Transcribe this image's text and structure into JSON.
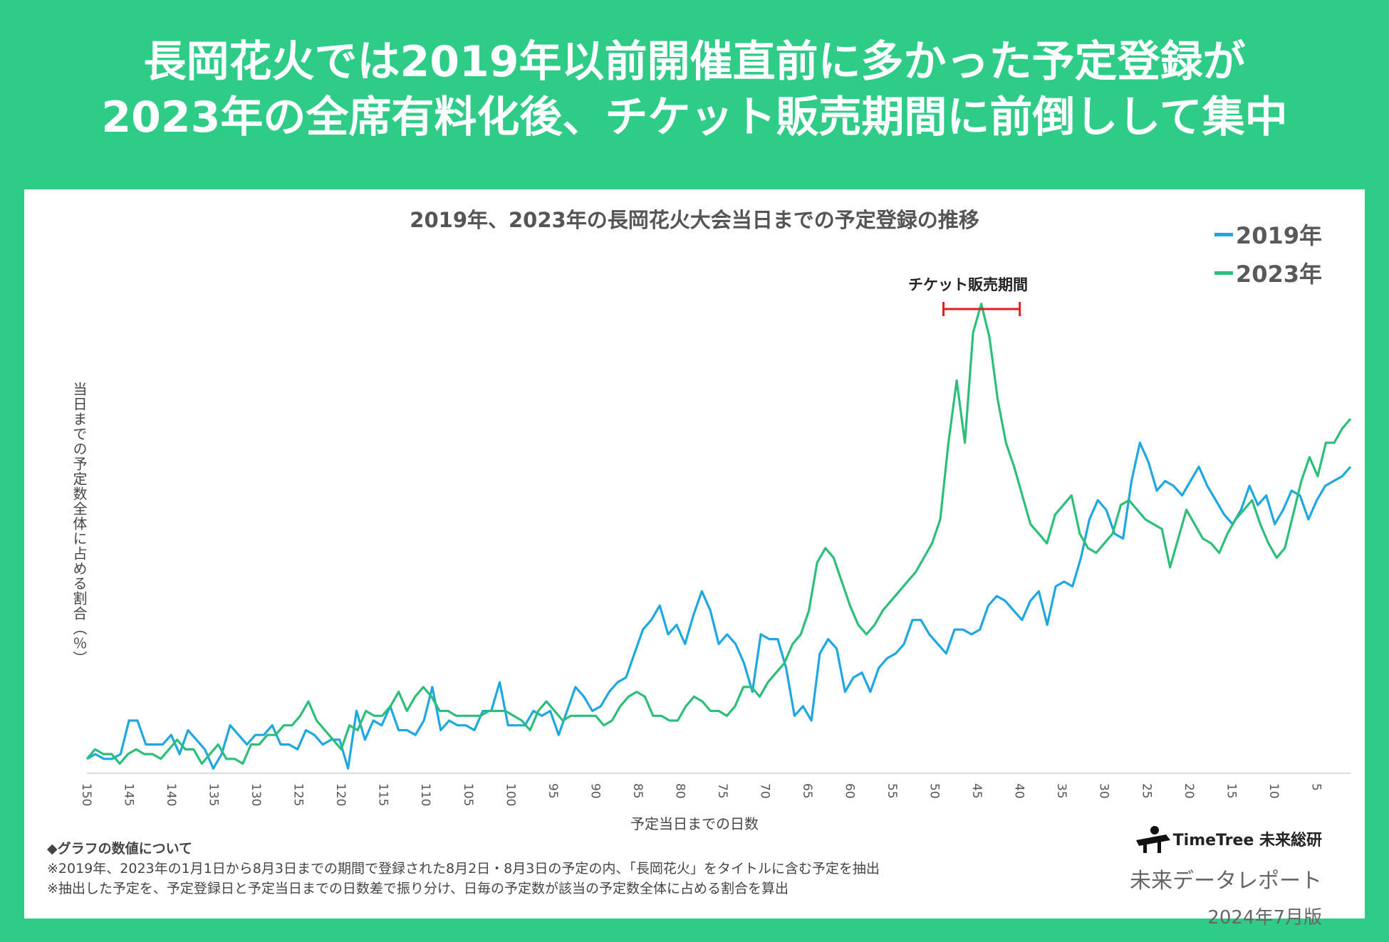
{
  "headline": {
    "line1": "長岡花火では2019年以前開催直前に多かった予定登録が",
    "line2": "2023年の全席有料化後、チケット販売期間に前倒しして集中"
  },
  "chart_data": {
    "type": "line",
    "title": "2019年、2023年の長岡花火大会当日までの予定登録の推移",
    "xlabel": "予定当日までの日数",
    "ylabel": "当日までの予定数全体に占める割合（％）",
    "x_reversed": true,
    "xlim": [
      150,
      1
    ],
    "ylim": [
      0,
      1.1
    ],
    "x_ticks": [
      "150",
      "145",
      "140",
      "135",
      "130",
      "125",
      "120",
      "115",
      "110",
      "105",
      "100",
      "95",
      "90",
      "85",
      "80",
      "75",
      "70",
      "65",
      "60",
      "55",
      "50",
      "45",
      "40",
      "35",
      "30",
      "25",
      "20",
      "15",
      "10",
      "5"
    ],
    "annotation": {
      "label": "チケット販売期間",
      "from_day": 49,
      "to_day": 40
    },
    "series": [
      {
        "name": "2019年",
        "color": "#1ea7e1",
        "values": [
          0.03,
          0.04,
          0.03,
          0.03,
          0.04,
          0.11,
          0.11,
          0.06,
          0.06,
          0.06,
          0.08,
          0.04,
          0.09,
          0.07,
          0.05,
          0.01,
          0.04,
          0.1,
          0.08,
          0.06,
          0.08,
          0.08,
          0.1,
          0.06,
          0.06,
          0.05,
          0.09,
          0.08,
          0.06,
          0.07,
          0.07,
          0.01,
          0.13,
          0.07,
          0.11,
          0.1,
          0.14,
          0.09,
          0.09,
          0.08,
          0.11,
          0.18,
          0.09,
          0.11,
          0.1,
          0.1,
          0.09,
          0.13,
          0.13,
          0.19,
          0.1,
          0.1,
          0.1,
          0.13,
          0.12,
          0.13,
          0.08,
          0.13,
          0.18,
          0.16,
          0.13,
          0.14,
          0.17,
          0.19,
          0.2,
          0.25,
          0.3,
          0.32,
          0.35,
          0.29,
          0.31,
          0.27,
          0.33,
          0.38,
          0.34,
          0.27,
          0.29,
          0.27,
          0.23,
          0.17,
          0.29,
          0.28,
          0.28,
          0.22,
          0.12,
          0.14,
          0.11,
          0.25,
          0.28,
          0.26,
          0.17,
          0.2,
          0.21,
          0.17,
          0.22,
          0.24,
          0.25,
          0.27,
          0.32,
          0.32,
          0.29,
          0.27,
          0.25,
          0.3,
          0.3,
          0.29,
          0.3,
          0.35,
          0.37,
          0.36,
          0.34,
          0.32,
          0.36,
          0.38,
          0.31,
          0.39,
          0.4,
          0.39,
          0.45,
          0.53,
          0.57,
          0.55,
          0.5,
          0.49,
          0.61,
          0.69,
          0.65,
          0.59,
          0.61,
          0.6,
          0.58,
          0.61,
          0.64,
          0.6,
          0.57,
          0.54,
          0.52,
          0.55,
          0.6,
          0.56,
          0.58,
          0.52,
          0.55,
          0.59,
          0.58,
          0.53,
          0.57,
          0.6,
          0.61,
          0.62,
          0.64
        ],
        "note": "values (%) listed from day 150 to day 1"
      },
      {
        "name": "2023年",
        "color": "#2dbf7a",
        "values": [
          0.03,
          0.05,
          0.04,
          0.04,
          0.02,
          0.04,
          0.05,
          0.04,
          0.04,
          0.03,
          0.05,
          0.07,
          0.05,
          0.05,
          0.02,
          0.04,
          0.06,
          0.03,
          0.03,
          0.02,
          0.06,
          0.06,
          0.08,
          0.08,
          0.1,
          0.1,
          0.12,
          0.15,
          0.11,
          0.09,
          0.07,
          0.05,
          0.1,
          0.09,
          0.13,
          0.12,
          0.12,
          0.14,
          0.17,
          0.13,
          0.16,
          0.18,
          0.16,
          0.13,
          0.13,
          0.12,
          0.12,
          0.12,
          0.12,
          0.13,
          0.13,
          0.13,
          0.12,
          0.11,
          0.09,
          0.13,
          0.15,
          0.13,
          0.11,
          0.12,
          0.12,
          0.12,
          0.12,
          0.1,
          0.11,
          0.14,
          0.16,
          0.17,
          0.16,
          0.12,
          0.12,
          0.11,
          0.11,
          0.14,
          0.16,
          0.15,
          0.13,
          0.13,
          0.12,
          0.14,
          0.18,
          0.18,
          0.16,
          0.19,
          0.21,
          0.23,
          0.27,
          0.29,
          0.34,
          0.44,
          0.47,
          0.45,
          0.4,
          0.35,
          0.31,
          0.29,
          0.31,
          0.34,
          0.36,
          0.38,
          0.4,
          0.42,
          0.45,
          0.48,
          0.53,
          0.69,
          0.82,
          0.69,
          0.92,
          0.98,
          0.91,
          0.78,
          0.69,
          0.64,
          0.58,
          0.52,
          0.5,
          0.48,
          0.54,
          0.56,
          0.58,
          0.5,
          0.47,
          0.46,
          0.48,
          0.5,
          0.56,
          0.57,
          0.55,
          0.53,
          0.52,
          0.51,
          0.43,
          0.49,
          0.55,
          0.52,
          0.49,
          0.48,
          0.46,
          0.5,
          0.53,
          0.55,
          0.57,
          0.52,
          0.48,
          0.45,
          0.47,
          0.54,
          0.61,
          0.66,
          0.62,
          0.69,
          0.69,
          0.72,
          0.74
        ],
        "note": "values (%) listed from day 150 to day 1"
      }
    ]
  },
  "legend": [
    "2019年",
    "2023年"
  ],
  "notes": {
    "heading": "◆グラフの数値について",
    "line1": "※2019年、2023年の1月1日から8月3日までの期間で登録された8月2日・8月3日の予定の内、「長岡花火」をタイトルに含む予定を抽出",
    "line2": "※抽出した予定を、予定登録日と予定当日までの日数差で振り分け、日毎の予定数が該当の予定数全体に占める割合を算出"
  },
  "brand": {
    "logo_text": "TimeTree 未来総研",
    "report": "未来データレポート",
    "date": "2024年7月版"
  }
}
